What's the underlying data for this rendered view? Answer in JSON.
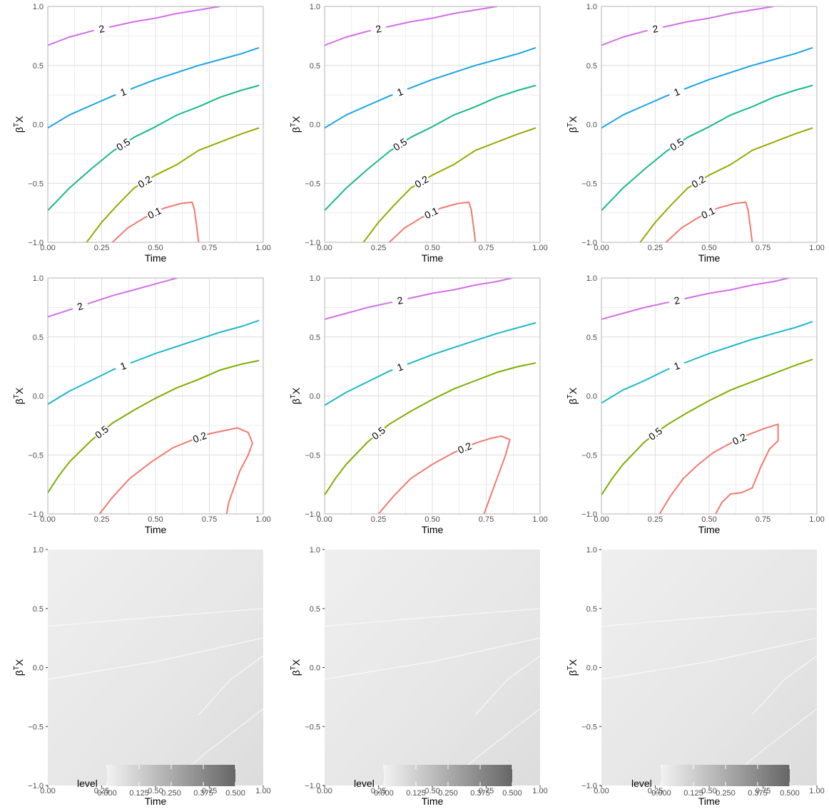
{
  "figure": {
    "xlabel": "Time",
    "ylabel_base": "β",
    "ylabel_sup": "T",
    "ylabel_tail": "X"
  },
  "axes": {
    "xlim": [
      0,
      1
    ],
    "ylim": [
      -1,
      1
    ],
    "x_ticks": [
      0,
      0.25,
      0.5,
      0.75,
      1
    ],
    "x_tick_labels": [
      "0.00",
      "0.25",
      "0.50",
      "0.75",
      "1.00"
    ],
    "y_ticks": [
      -1,
      -0.5,
      0,
      0.5,
      1
    ],
    "y_tick_labels": [
      "−1.0",
      "−0.5",
      "0.0",
      "0.5",
      "1.0"
    ],
    "grid": true
  },
  "colors": {
    "level_2": "#d36ee8",
    "level_1": "#1aa3e6",
    "level_1_b": "#1bb8c8",
    "level_05": "#17b98a",
    "level_05_b": "#7cae00",
    "level_02": "#9aa800",
    "level_02_b": "#f07a70",
    "level_01": "#f07a70",
    "grid": "#dcdcdc",
    "frame": "#b3b3b3",
    "tile_light": "#f2f2f2",
    "tile_dark": "#666666"
  },
  "legend": {
    "title": "level",
    "tick_labels": [
      "0.000",
      "0.125",
      "0.250",
      "0.375",
      "0.500"
    ],
    "range": [
      0,
      0.5
    ]
  },
  "chart_data": [
    {
      "type": "contour",
      "row": 1,
      "col": 1,
      "series": [
        {
          "label": "2",
          "color_key": "level_2",
          "x": [
            0,
            0.1,
            0.2,
            0.3,
            0.4,
            0.5,
            0.6,
            0.7,
            0.8
          ],
          "y": [
            0.67,
            0.74,
            0.79,
            0.83,
            0.87,
            0.9,
            0.94,
            0.97,
            1.0
          ]
        },
        {
          "label": "1",
          "color_key": "level_1",
          "x": [
            0,
            0.1,
            0.2,
            0.3,
            0.4,
            0.5,
            0.6,
            0.7,
            0.8,
            0.9,
            0.98
          ],
          "y": [
            -0.03,
            0.08,
            0.16,
            0.24,
            0.31,
            0.38,
            0.44,
            0.5,
            0.55,
            0.6,
            0.65
          ]
        },
        {
          "label": "0.5",
          "color_key": "level_05",
          "x": [
            0,
            0.1,
            0.2,
            0.3,
            0.4,
            0.5,
            0.6,
            0.7,
            0.8,
            0.9,
            0.98
          ],
          "y": [
            -0.73,
            -0.54,
            -0.38,
            -0.23,
            -0.11,
            -0.02,
            0.08,
            0.15,
            0.23,
            0.29,
            0.33
          ]
        },
        {
          "label": "0.2",
          "color_key": "level_02",
          "x": [
            0.18,
            0.25,
            0.32,
            0.4,
            0.5,
            0.6,
            0.7,
            0.8,
            0.9,
            0.98
          ],
          "y": [
            -1.0,
            -0.83,
            -0.69,
            -0.54,
            -0.43,
            -0.34,
            -0.22,
            -0.15,
            -0.08,
            -0.03
          ]
        },
        {
          "label": "0.1",
          "color_key": "level_01",
          "x": [
            0.3,
            0.37,
            0.45,
            0.54,
            0.62,
            0.67,
            0.68,
            0.69,
            0.7
          ],
          "y": [
            -1.0,
            -0.88,
            -0.79,
            -0.71,
            -0.67,
            -0.66,
            -0.72,
            -0.85,
            -1.0
          ]
        }
      ]
    },
    {
      "type": "contour",
      "row": 1,
      "col": 2,
      "series": [
        {
          "label": "2",
          "color_key": "level_2",
          "x": [
            0,
            0.1,
            0.2,
            0.3,
            0.4,
            0.5,
            0.6,
            0.7,
            0.8
          ],
          "y": [
            0.67,
            0.74,
            0.79,
            0.83,
            0.87,
            0.9,
            0.94,
            0.97,
            1.0
          ]
        },
        {
          "label": "1",
          "color_key": "level_1",
          "x": [
            0,
            0.1,
            0.2,
            0.3,
            0.4,
            0.5,
            0.6,
            0.7,
            0.8,
            0.9,
            0.98
          ],
          "y": [
            -0.03,
            0.08,
            0.16,
            0.24,
            0.31,
            0.38,
            0.44,
            0.5,
            0.55,
            0.6,
            0.65
          ]
        },
        {
          "label": "0.5",
          "color_key": "level_05",
          "x": [
            0,
            0.1,
            0.2,
            0.3,
            0.4,
            0.5,
            0.6,
            0.7,
            0.8,
            0.9,
            0.98
          ],
          "y": [
            -0.73,
            -0.54,
            -0.38,
            -0.23,
            -0.11,
            -0.02,
            0.08,
            0.15,
            0.23,
            0.29,
            0.33
          ]
        },
        {
          "label": "0.2",
          "color_key": "level_02",
          "x": [
            0.18,
            0.25,
            0.32,
            0.4,
            0.5,
            0.6,
            0.7,
            0.8,
            0.9,
            0.98
          ],
          "y": [
            -1.0,
            -0.83,
            -0.69,
            -0.54,
            -0.43,
            -0.34,
            -0.22,
            -0.15,
            -0.08,
            -0.03
          ]
        },
        {
          "label": "0.1",
          "color_key": "level_01",
          "x": [
            0.3,
            0.37,
            0.45,
            0.54,
            0.62,
            0.67,
            0.68,
            0.69,
            0.7
          ],
          "y": [
            -1.0,
            -0.88,
            -0.79,
            -0.71,
            -0.67,
            -0.66,
            -0.72,
            -0.85,
            -1.0
          ]
        }
      ]
    },
    {
      "type": "contour",
      "row": 1,
      "col": 3,
      "series": [
        {
          "label": "2",
          "color_key": "level_2",
          "x": [
            0,
            0.1,
            0.2,
            0.3,
            0.4,
            0.5,
            0.6,
            0.7,
            0.8
          ],
          "y": [
            0.67,
            0.74,
            0.79,
            0.83,
            0.87,
            0.9,
            0.94,
            0.97,
            1.0
          ]
        },
        {
          "label": "1",
          "color_key": "level_1",
          "x": [
            0,
            0.1,
            0.2,
            0.3,
            0.4,
            0.5,
            0.6,
            0.7,
            0.8,
            0.9,
            0.98
          ],
          "y": [
            -0.03,
            0.08,
            0.16,
            0.24,
            0.31,
            0.38,
            0.44,
            0.5,
            0.55,
            0.6,
            0.65
          ]
        },
        {
          "label": "0.5",
          "color_key": "level_05",
          "x": [
            0,
            0.1,
            0.2,
            0.3,
            0.4,
            0.5,
            0.6,
            0.7,
            0.8,
            0.9,
            0.98
          ],
          "y": [
            -0.73,
            -0.54,
            -0.38,
            -0.23,
            -0.11,
            -0.02,
            0.08,
            0.15,
            0.23,
            0.29,
            0.33
          ]
        },
        {
          "label": "0.2",
          "color_key": "level_02",
          "x": [
            0.18,
            0.25,
            0.32,
            0.4,
            0.5,
            0.6,
            0.7,
            0.8,
            0.9,
            0.98
          ],
          "y": [
            -1.0,
            -0.83,
            -0.69,
            -0.54,
            -0.43,
            -0.34,
            -0.22,
            -0.15,
            -0.08,
            -0.03
          ]
        },
        {
          "label": "0.1",
          "color_key": "level_01",
          "x": [
            0.3,
            0.37,
            0.45,
            0.54,
            0.62,
            0.67,
            0.68,
            0.69,
            0.7
          ],
          "y": [
            -1.0,
            -0.88,
            -0.79,
            -0.71,
            -0.67,
            -0.66,
            -0.72,
            -0.85,
            -1.0
          ]
        }
      ]
    },
    {
      "type": "contour",
      "row": 2,
      "col": 1,
      "series": [
        {
          "label": "2",
          "color_key": "level_2",
          "x": [
            0,
            0.1,
            0.2,
            0.3,
            0.4,
            0.5,
            0.6
          ],
          "y": [
            0.67,
            0.73,
            0.79,
            0.85,
            0.9,
            0.95,
            1.0
          ]
        },
        {
          "label": "1",
          "color_key": "level_1_b",
          "x": [
            0,
            0.1,
            0.2,
            0.3,
            0.4,
            0.5,
            0.6,
            0.7,
            0.8,
            0.9,
            0.98
          ],
          "y": [
            -0.07,
            0.04,
            0.13,
            0.22,
            0.29,
            0.36,
            0.42,
            0.48,
            0.54,
            0.59,
            0.64
          ]
        },
        {
          "label": "0.5",
          "color_key": "level_05_b",
          "x": [
            0,
            0.05,
            0.1,
            0.2,
            0.3,
            0.4,
            0.5,
            0.6,
            0.7,
            0.8,
            0.9,
            0.98
          ],
          "y": [
            -0.82,
            -0.68,
            -0.56,
            -0.38,
            -0.23,
            -0.12,
            -0.02,
            0.07,
            0.14,
            0.22,
            0.27,
            0.3
          ]
        },
        {
          "label": "0.2",
          "color_key": "level_02_b",
          "x": [
            0.24,
            0.3,
            0.38,
            0.48,
            0.58,
            0.66,
            0.75,
            0.83,
            0.88,
            0.93,
            0.95,
            0.93,
            0.89,
            0.86,
            0.84,
            0.83
          ],
          "y": [
            -1.0,
            -0.86,
            -0.7,
            -0.56,
            -0.44,
            -0.38,
            -0.32,
            -0.29,
            -0.27,
            -0.31,
            -0.4,
            -0.5,
            -0.64,
            -0.8,
            -0.9,
            -1.0
          ]
        }
      ]
    },
    {
      "type": "contour",
      "row": 2,
      "col": 2,
      "series": [
        {
          "label": "2",
          "color_key": "level_2",
          "x": [
            0,
            0.1,
            0.2,
            0.3,
            0.4,
            0.5,
            0.6,
            0.7,
            0.8,
            0.87
          ],
          "y": [
            0.65,
            0.7,
            0.75,
            0.79,
            0.83,
            0.87,
            0.9,
            0.94,
            0.97,
            1.0
          ]
        },
        {
          "label": "1",
          "color_key": "level_1_b",
          "x": [
            0,
            0.1,
            0.2,
            0.3,
            0.4,
            0.5,
            0.6,
            0.7,
            0.8,
            0.9,
            0.98
          ],
          "y": [
            -0.08,
            0.03,
            0.12,
            0.21,
            0.28,
            0.35,
            0.41,
            0.47,
            0.53,
            0.58,
            0.62
          ]
        },
        {
          "label": "0.5",
          "color_key": "level_05_b",
          "x": [
            0,
            0.05,
            0.1,
            0.2,
            0.3,
            0.4,
            0.5,
            0.6,
            0.7,
            0.8,
            0.9,
            0.98
          ],
          "y": [
            -0.84,
            -0.7,
            -0.58,
            -0.39,
            -0.24,
            -0.13,
            -0.03,
            0.06,
            0.13,
            0.2,
            0.25,
            0.28
          ]
        },
        {
          "label": "0.2",
          "color_key": "level_02_b",
          "x": [
            0.25,
            0.32,
            0.4,
            0.5,
            0.6,
            0.7,
            0.77,
            0.82,
            0.86,
            0.84,
            0.8,
            0.77,
            0.74
          ],
          "y": [
            -1.0,
            -0.85,
            -0.7,
            -0.58,
            -0.48,
            -0.4,
            -0.36,
            -0.34,
            -0.37,
            -0.5,
            -0.7,
            -0.85,
            -1.0
          ]
        }
      ]
    },
    {
      "type": "contour",
      "row": 2,
      "col": 3,
      "series": [
        {
          "label": "2",
          "color_key": "level_2",
          "x": [
            0,
            0.1,
            0.2,
            0.3,
            0.4,
            0.5,
            0.6,
            0.7,
            0.8,
            0.87
          ],
          "y": [
            0.65,
            0.7,
            0.75,
            0.79,
            0.83,
            0.87,
            0.9,
            0.94,
            0.97,
            1.0
          ]
        },
        {
          "label": "1",
          "color_key": "level_1_b",
          "x": [
            0,
            0.1,
            0.2,
            0.3,
            0.4,
            0.5,
            0.6,
            0.7,
            0.8,
            0.9,
            0.98
          ],
          "y": [
            -0.06,
            0.05,
            0.13,
            0.22,
            0.29,
            0.36,
            0.42,
            0.48,
            0.53,
            0.58,
            0.63
          ]
        },
        {
          "label": "0.5",
          "color_key": "level_05_b",
          "x": [
            0,
            0.05,
            0.1,
            0.2,
            0.3,
            0.4,
            0.5,
            0.6,
            0.7,
            0.8,
            0.9,
            0.98
          ],
          "y": [
            -0.84,
            -0.7,
            -0.58,
            -0.39,
            -0.25,
            -0.14,
            -0.04,
            0.05,
            0.12,
            0.19,
            0.26,
            0.31
          ]
        },
        {
          "label": "0.2",
          "color_key": "level_02_b",
          "x": [
            0.27,
            0.32,
            0.38,
            0.45,
            0.52,
            0.6,
            0.68,
            0.75,
            0.82,
            0.82,
            0.78,
            0.74,
            0.7,
            0.65,
            0.6,
            0.56,
            0.53
          ],
          "y": [
            -1.0,
            -0.85,
            -0.7,
            -0.58,
            -0.48,
            -0.4,
            -0.33,
            -0.28,
            -0.24,
            -0.38,
            -0.45,
            -0.6,
            -0.78,
            -0.82,
            -0.83,
            -0.9,
            -1.0
          ]
        }
      ]
    },
    {
      "type": "heatmap",
      "row": 3,
      "col": 1,
      "value_range": [
        0,
        0.5
      ],
      "x_range": [
        0,
        1
      ],
      "y_range": [
        -1,
        1
      ],
      "approx_level_range": [
        0.01,
        0.1
      ]
    },
    {
      "type": "heatmap",
      "row": 3,
      "col": 2,
      "value_range": [
        0,
        0.5
      ],
      "x_range": [
        0,
        1
      ],
      "y_range": [
        -1,
        1
      ],
      "approx_level_range": [
        0.01,
        0.1
      ]
    },
    {
      "type": "heatmap",
      "row": 3,
      "col": 3,
      "value_range": [
        0,
        0.5
      ],
      "x_range": [
        0,
        1
      ],
      "y_range": [
        -1,
        1
      ],
      "approx_level_range": [
        0.01,
        0.1
      ]
    }
  ]
}
